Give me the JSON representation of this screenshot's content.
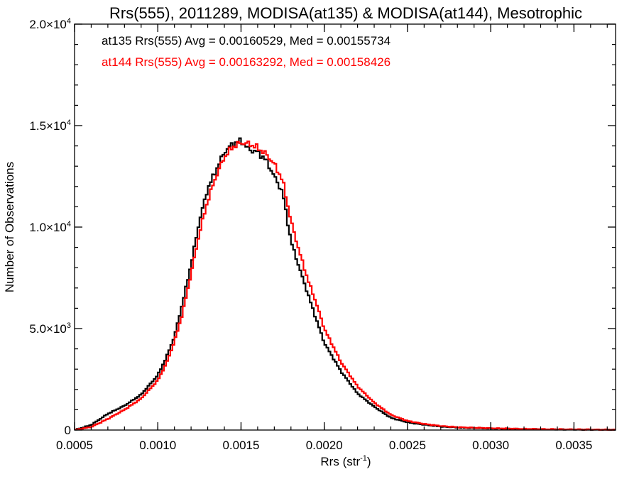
{
  "chart_data": {
    "type": "line",
    "step": true,
    "title": "Rrs(555), 2011289, MODISA(at135) & MODISA(at144), Mesotrophic",
    "xlabel": "Rrs (str",
    "xlabel_sup": "-1",
    "xlabel_suffix": ")",
    "ylabel": "Number of Observations",
    "xlim": [
      0.0005,
      0.00375
    ],
    "ylim": [
      0,
      20000
    ],
    "x_ticks": [
      {
        "value": 0.0005,
        "label": "0.0005"
      },
      {
        "value": 0.001,
        "label": "0.0010"
      },
      {
        "value": 0.0015,
        "label": "0.0015"
      },
      {
        "value": 0.002,
        "label": "0.0020"
      },
      {
        "value": 0.0025,
        "label": "0.0025"
      },
      {
        "value": 0.003,
        "label": "0.0030"
      },
      {
        "value": 0.0035,
        "label": "0.0035"
      }
    ],
    "y_ticks": [
      {
        "value": 0,
        "mant": "0",
        "exp": ""
      },
      {
        "value": 5000,
        "mant": "5.0×10",
        "exp": "3"
      },
      {
        "value": 10000,
        "mant": "1.0×10",
        "exp": "4"
      },
      {
        "value": 15000,
        "mant": "1.5×10",
        "exp": "4"
      },
      {
        "value": 20000,
        "mant": "2.0×10",
        "exp": "4"
      }
    ],
    "grid": false,
    "legend_position": "top-left",
    "annotations": [
      {
        "text": "at135 Rrs(555) Avg = 0.00160529, Med = 0.00155734",
        "color": "#000000"
      },
      {
        "text": "at144 Rrs(555) Avg = 0.00163292, Med = 0.00158426",
        "color": "#ff0000"
      }
    ],
    "series": [
      {
        "color": "#000000",
        "x": [
          0.0005,
          0.0006,
          0.0007,
          0.0008,
          0.0009,
          0.001,
          0.00105,
          0.0011,
          0.00115,
          0.0012,
          0.00125,
          0.0013,
          0.00135,
          0.0014,
          0.00145,
          0.0015,
          0.00155,
          0.0016,
          0.00165,
          0.0017,
          0.00175,
          0.0018,
          0.00185,
          0.0019,
          0.00195,
          0.002,
          0.0021,
          0.0022,
          0.0023,
          0.0024,
          0.0025,
          0.0026,
          0.0027,
          0.0028,
          0.003,
          0.0032,
          0.0034,
          0.00375
        ],
        "values": [
          0,
          250,
          800,
          1200,
          1750,
          2700,
          3550,
          4600,
          6300,
          8150,
          10300,
          11900,
          12800,
          13700,
          14100,
          14250,
          13800,
          13700,
          13300,
          12500,
          11700,
          9300,
          8000,
          6750,
          5500,
          4300,
          2900,
          1800,
          1150,
          600,
          380,
          260,
          170,
          120,
          75,
          45,
          30,
          10
        ]
      },
      {
        "color": "#ff0000",
        "x": [
          0.0005,
          0.0006,
          0.0007,
          0.0008,
          0.0009,
          0.001,
          0.00105,
          0.0011,
          0.00115,
          0.0012,
          0.00125,
          0.0013,
          0.00135,
          0.0014,
          0.00145,
          0.0015,
          0.00155,
          0.0016,
          0.00165,
          0.0017,
          0.00175,
          0.0018,
          0.00185,
          0.0019,
          0.00195,
          0.002,
          0.0021,
          0.0022,
          0.0023,
          0.0024,
          0.0025,
          0.0026,
          0.0027,
          0.0028,
          0.003,
          0.0032,
          0.0034,
          0.00375
        ],
        "values": [
          0,
          150,
          550,
          1000,
          1550,
          2450,
          3250,
          4350,
          5800,
          7700,
          9700,
          11300,
          12500,
          13450,
          13950,
          14150,
          14100,
          13900,
          13600,
          13100,
          12300,
          10300,
          8800,
          7450,
          6300,
          5000,
          3350,
          2150,
          1350,
          750,
          450,
          300,
          200,
          140,
          90,
          55,
          35,
          12
        ]
      }
    ]
  }
}
